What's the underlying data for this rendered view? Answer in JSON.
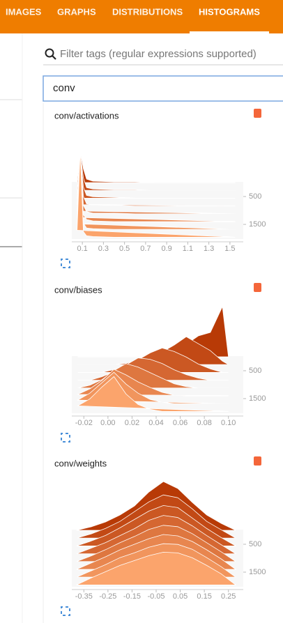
{
  "tabs": [
    "IMAGES",
    "GRAPHS",
    "DISTRIBUTIONS",
    "HISTOGRAMS"
  ],
  "active_tab": 3,
  "search_placeholder": "Filter tags (regular expressions supported)",
  "filter": "conv",
  "chart_data": [
    {
      "type": "ridgeline",
      "title": "conv/activations",
      "x": [
        0.05,
        0.08,
        0.11,
        0.14,
        0.2,
        0.4,
        0.6,
        0.8,
        1.0,
        1.2,
        1.4,
        1.55
      ],
      "xlim": [
        0.0,
        1.6
      ],
      "xticks": [
        0.1,
        0.3,
        0.5,
        0.7,
        0.9,
        1.1,
        1.3,
        1.5
      ],
      "ylim": [
        0,
        2000
      ],
      "yticks": [
        500,
        1500
      ],
      "zlim": [
        0,
        100
      ],
      "color_range": [
        "#b83a06",
        "#fba46c"
      ],
      "series": [
        {
          "step": 0,
          "values": [
            0,
            45,
            20,
            5,
            2,
            1,
            1,
            0,
            0,
            0,
            0,
            0
          ]
        },
        {
          "step": 280,
          "values": [
            0,
            55,
            18,
            4,
            2,
            1,
            1,
            0,
            0,
            0,
            0,
            0
          ]
        },
        {
          "step": 560,
          "values": [
            0,
            65,
            16,
            4,
            2,
            1,
            0,
            0,
            0,
            0,
            0,
            0
          ]
        },
        {
          "step": 840,
          "values": [
            2,
            75,
            14,
            3,
            2,
            1,
            0,
            0,
            0,
            0,
            0,
            0
          ]
        },
        {
          "step": 1120,
          "values": [
            4,
            85,
            12,
            3,
            1,
            1,
            0,
            0,
            0,
            0,
            0,
            0
          ]
        },
        {
          "step": 1400,
          "values": [
            6,
            95,
            10,
            3,
            1,
            0,
            0,
            0,
            0,
            0,
            0,
            0
          ]
        },
        {
          "step": 1680,
          "values": [
            8,
            110,
            9,
            2,
            1,
            0,
            0,
            0,
            0,
            0,
            0,
            0
          ]
        },
        {
          "step": 1960,
          "values": [
            10,
            125,
            8,
            2,
            1,
            0,
            0,
            0,
            0,
            0,
            0,
            0
          ]
        }
      ]
    },
    {
      "type": "ridgeline",
      "title": "conv/biases",
      "x": [
        -0.025,
        -0.015,
        -0.005,
        0.005,
        0.015,
        0.025,
        0.035,
        0.045,
        0.055,
        0.065,
        0.075,
        0.085,
        0.095,
        0.1
      ],
      "xlim": [
        -0.03,
        0.11
      ],
      "xticks": [
        -0.02,
        {
          "value": 0,
          "label": "0.00"
        },
        0.02,
        0.04,
        0.06,
        0.08,
        {
          "value": 0.1,
          "label": "0.10"
        }
      ],
      "ylim": [
        0,
        2000
      ],
      "yticks": [
        500,
        1500
      ],
      "zlim": [
        0,
        100
      ],
      "color_range": [
        "#b83a06",
        "#fba46c"
      ],
      "series": [
        {
          "step": 0,
          "values": [
            0,
            0,
            0,
            0,
            0,
            0,
            2,
            6,
            10,
            18,
            30,
            35,
            72,
            0
          ]
        },
        {
          "step": 280,
          "values": [
            0,
            0,
            0,
            0,
            2,
            6,
            10,
            18,
            28,
            40,
            30,
            20,
            5,
            0
          ]
        },
        {
          "step": 560,
          "values": [
            0,
            0,
            0,
            4,
            10,
            18,
            28,
            35,
            30,
            22,
            12,
            5,
            0,
            0
          ]
        },
        {
          "step": 840,
          "values": [
            0,
            0,
            5,
            12,
            22,
            32,
            30,
            24,
            15,
            8,
            3,
            0,
            0,
            0
          ]
        },
        {
          "step": 1120,
          "values": [
            0,
            4,
            12,
            25,
            35,
            30,
            22,
            14,
            6,
            2,
            0,
            0,
            0,
            0
          ]
        },
        {
          "step": 1400,
          "values": [
            2,
            10,
            22,
            38,
            30,
            20,
            12,
            5,
            1,
            0,
            0,
            0,
            0,
            0
          ]
        },
        {
          "step": 1680,
          "values": [
            5,
            15,
            30,
            45,
            28,
            15,
            6,
            2,
            0,
            0,
            0,
            0,
            0,
            0
          ]
        },
        {
          "step": 1960,
          "values": [
            8,
            18,
            35,
            50,
            25,
            10,
            3,
            0,
            0,
            0,
            0,
            0,
            0,
            0
          ]
        }
      ]
    },
    {
      "type": "ridgeline",
      "title": "conv/weights",
      "x": [
        -0.38,
        -0.32,
        -0.26,
        -0.2,
        -0.14,
        -0.08,
        -0.02,
        0.04,
        0.1,
        0.16,
        0.22,
        0.28
      ],
      "xlim": [
        -0.4,
        0.3
      ],
      "xticks": [
        -0.35,
        -0.25,
        -0.15,
        -0.05,
        0.05,
        0.15,
        0.25
      ],
      "ylim": [
        0,
        2000
      ],
      "yticks": [
        500,
        1500
      ],
      "zlim": [
        0,
        100
      ],
      "color_range": [
        "#b83a06",
        "#fba46c"
      ],
      "series": [
        {
          "step": 0,
          "values": [
            0,
            5,
            12,
            22,
            35,
            55,
            70,
            60,
            40,
            22,
            10,
            0
          ]
        },
        {
          "step": 280,
          "values": [
            0,
            6,
            14,
            24,
            38,
            52,
            62,
            58,
            42,
            24,
            12,
            0
          ]
        },
        {
          "step": 560,
          "values": [
            0,
            7,
            15,
            26,
            38,
            50,
            58,
            55,
            40,
            25,
            12,
            0
          ]
        },
        {
          "step": 840,
          "values": [
            0,
            8,
            16,
            26,
            36,
            48,
            55,
            52,
            40,
            26,
            13,
            0
          ]
        },
        {
          "step": 1120,
          "values": [
            0,
            8,
            17,
            27,
            36,
            46,
            52,
            50,
            40,
            27,
            14,
            0
          ]
        },
        {
          "step": 1400,
          "values": [
            0,
            9,
            18,
            28,
            36,
            44,
            50,
            48,
            40,
            28,
            15,
            0
          ]
        },
        {
          "step": 1680,
          "values": [
            0,
            9,
            18,
            28,
            35,
            43,
            48,
            47,
            40,
            28,
            15,
            0
          ]
        },
        {
          "step": 1960,
          "values": [
            0,
            10,
            19,
            28,
            35,
            42,
            47,
            46,
            39,
            28,
            16,
            0
          ]
        }
      ]
    }
  ]
}
